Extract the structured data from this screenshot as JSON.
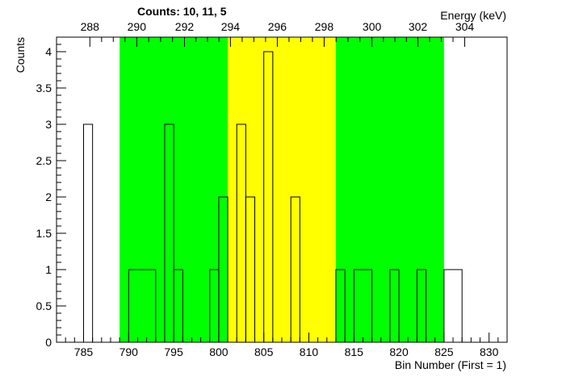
{
  "title": "Counts:   10,   11,   5",
  "chart_data": {
    "type": "bar",
    "title": "Counts:   10,   11,   5",
    "xlabel": "Bin Number (First = 1)",
    "ylabel": "Counts",
    "x2label": "Energy (keV)",
    "xlim": [
      782,
      832
    ],
    "ylim": [
      0,
      4.2
    ],
    "x_ticks": [
      785,
      790,
      795,
      800,
      805,
      810,
      815,
      820,
      825,
      830
    ],
    "y_ticks": [
      0,
      0.5,
      1,
      1.5,
      2,
      2.5,
      3,
      3.5,
      4
    ],
    "y_tick_labels": [
      "0",
      "0.5",
      "1",
      "1.5",
      "2",
      "2.5",
      "3",
      "3.5",
      "4"
    ],
    "x2_ticks": [
      {
        "bin": 785.7,
        "label": "288"
      },
      {
        "bin": 790.9,
        "label": "290"
      },
      {
        "bin": 796.2,
        "label": "292"
      },
      {
        "bin": 801.3,
        "label": "294"
      },
      {
        "bin": 806.5,
        "label": "296"
      },
      {
        "bin": 811.7,
        "label": "298"
      },
      {
        "bin": 817.0,
        "label": "300"
      },
      {
        "bin": 822.1,
        "label": "302"
      },
      {
        "bin": 827.3,
        "label": "304"
      }
    ],
    "regions": [
      {
        "x0": 789,
        "x1": 801,
        "color": "#00ff00"
      },
      {
        "x0": 801,
        "x1": 813,
        "color": "#ffff00"
      },
      {
        "x0": 813,
        "x1": 825,
        "color": "#00ff00"
      }
    ],
    "bins": [
      {
        "x0": 785,
        "x1": 786,
        "value": 3
      },
      {
        "x0": 790,
        "x1": 793,
        "value": 1
      },
      {
        "x0": 794,
        "x1": 795,
        "value": 3
      },
      {
        "x0": 795,
        "x1": 796,
        "value": 1
      },
      {
        "x0": 799,
        "x1": 800,
        "value": 1
      },
      {
        "x0": 800,
        "x1": 801,
        "value": 2
      },
      {
        "x0": 802,
        "x1": 803,
        "value": 3
      },
      {
        "x0": 803,
        "x1": 804,
        "value": 2
      },
      {
        "x0": 805,
        "x1": 806,
        "value": 4
      },
      {
        "x0": 808,
        "x1": 809,
        "value": 2
      },
      {
        "x0": 813,
        "x1": 814,
        "value": 1
      },
      {
        "x0": 815,
        "x1": 817,
        "value": 1
      },
      {
        "x0": 819,
        "x1": 820,
        "value": 1
      },
      {
        "x0": 822,
        "x1": 823,
        "value": 1
      },
      {
        "x0": 825,
        "x1": 827,
        "value": 1
      }
    ]
  }
}
